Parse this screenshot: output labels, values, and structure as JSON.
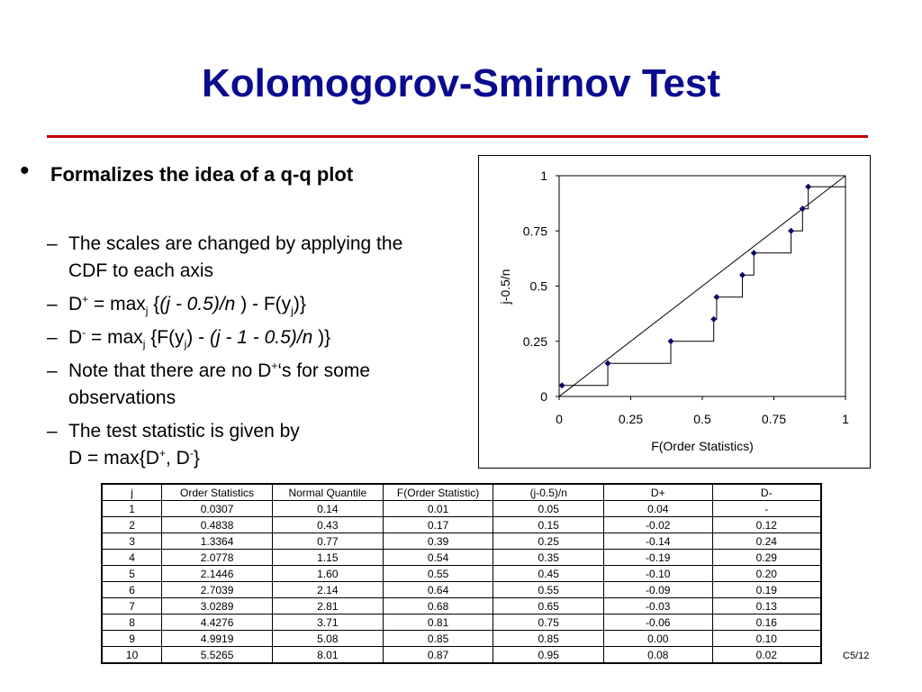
{
  "title": "Kolomogorov-Smirnov Test",
  "main_bullet": {
    "symbol": "•",
    "text": "Formalizes the idea of a   q-q plot"
  },
  "sub_bullets": {
    "dash": "–",
    "item1": "The scales are changed by applying the CDF to each axis",
    "item2": {
      "lhs": "D",
      "sup": "+",
      "eq": " = max",
      "sub": "j",
      "open": " {",
      "expr": "(j - 0.5)/n",
      "mid": " ) - F(y",
      "sub2": "j",
      "close": ")}"
    },
    "item3": {
      "lhs": "D",
      "sup": "-",
      "eq": " = max",
      "sub": "j",
      "open": " {F(y",
      "sub2": "j",
      "mid": ") - ",
      "expr": "(j - 1 - 0.5)/n",
      "close": " )}"
    },
    "item4": {
      "pre": "Note that there are no D",
      "sup": "+",
      "post": "‘s for some observations"
    },
    "item5": {
      "line1": "The test statistic is given by",
      "pre": "D = max{D",
      "sup1": "+",
      "mid": ", D",
      "sup2": "-",
      "close": "}"
    }
  },
  "chart_data": {
    "type": "scatter",
    "xlabel": "F(Order Statistics)",
    "ylabel": "j-0.5/n",
    "xlim": [
      0,
      1
    ],
    "ylim": [
      0,
      1
    ],
    "x_ticks": [
      "0",
      "0.25",
      "0.5",
      "0.75",
      "1"
    ],
    "y_ticks": [
      "0",
      "0.25",
      "0.5",
      "0.75",
      "1"
    ],
    "x": [
      0.01,
      0.17,
      0.39,
      0.54,
      0.55,
      0.64,
      0.68,
      0.81,
      0.85,
      0.87
    ],
    "y": [
      0.05,
      0.15,
      0.25,
      0.35,
      0.45,
      0.55,
      0.65,
      0.75,
      0.85,
      0.95
    ],
    "reference_line": [
      [
        0,
        0
      ],
      [
        1,
        1
      ]
    ],
    "step_line": true,
    "grid": false,
    "marker_color": "#0a0a6a"
  },
  "table": {
    "headers": [
      "j",
      "Order Statistics",
      "Normal Quantile",
      "F(Order Statistic)",
      "(j-0.5)/n",
      "D+",
      "D-"
    ],
    "rows": [
      [
        "1",
        "0.0307",
        "0.14",
        "0.01",
        "0.05",
        "0.04",
        "-"
      ],
      [
        "2",
        "0.4838",
        "0.43",
        "0.17",
        "0.15",
        "-0.02",
        "0.12"
      ],
      [
        "3",
        "1.3364",
        "0.77",
        "0.39",
        "0.25",
        "-0.14",
        "0.24"
      ],
      [
        "4",
        "2.0778",
        "1.15",
        "0.54",
        "0.35",
        "-0.19",
        "0.29"
      ],
      [
        "5",
        "2.1446",
        "1.60",
        "0.55",
        "0.45",
        "-0.10",
        "0.20"
      ],
      [
        "6",
        "2.7039",
        "2.14",
        "0.64",
        "0.55",
        "-0.09",
        "0.19"
      ],
      [
        "7",
        "3.0289",
        "2.81",
        "0.68",
        "0.65",
        "-0.03",
        "0.13"
      ],
      [
        "8",
        "4.4276",
        "3.71",
        "0.81",
        "0.75",
        "-0.06",
        "0.16"
      ],
      [
        "9",
        "4.9919",
        "5.08",
        "0.85",
        "0.85",
        "0.00",
        "0.10"
      ],
      [
        "10",
        "5.5265",
        "8.01",
        "0.87",
        "0.95",
        "0.08",
        "0.02"
      ]
    ]
  },
  "slide_number": "C5/12",
  "colors": {
    "title": "#0a0a8f",
    "rule": "#c00000"
  }
}
